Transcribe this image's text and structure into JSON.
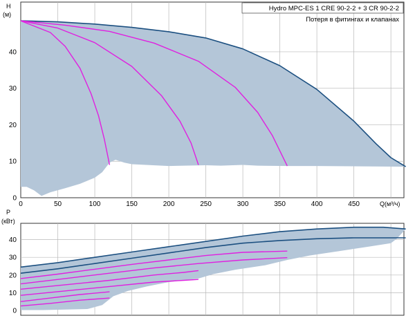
{
  "chart_data": [
    {
      "type": "line",
      "title": "Hydro MPC-ES 1 CRE 90-2-2 + 3 CR 90-2-2",
      "subtitle": "Потеря в фитингах и клапанах",
      "xlabel": "Q(м³/ч)",
      "ylabel_line1": "H",
      "ylabel_line2": "(м)",
      "xlim": [
        0,
        500
      ],
      "ylim": [
        0,
        50
      ],
      "xticks": [
        "0",
        "50",
        "100",
        "150",
        "200",
        "250",
        "300",
        "350",
        "400",
        "450"
      ],
      "yticks": [
        "0",
        "10",
        "20",
        "30",
        "40"
      ],
      "grid": true,
      "area": {
        "top": [
          [
            0,
            48.5
          ],
          [
            50,
            48.2
          ],
          [
            100,
            47.6
          ],
          [
            150,
            46.7
          ],
          [
            200,
            45.5
          ],
          [
            250,
            43.8
          ],
          [
            300,
            40.8
          ],
          [
            350,
            36.2
          ],
          [
            400,
            29.7
          ],
          [
            450,
            21.0
          ],
          [
            480,
            14.8
          ],
          [
            500,
            11.0
          ],
          [
            520,
            8.5
          ]
        ],
        "bottom": [
          [
            520,
            8.5
          ],
          [
            400,
            8.7
          ],
          [
            360,
            8.7
          ],
          [
            320,
            8.8
          ],
          [
            300,
            9.0
          ],
          [
            270,
            8.8
          ],
          [
            250,
            8.9
          ],
          [
            200,
            8.7
          ],
          [
            150,
            9.2
          ],
          [
            140,
            9.6
          ],
          [
            128,
            10.4
          ],
          [
            120,
            9.6
          ],
          [
            110,
            7.0
          ],
          [
            100,
            5.5
          ],
          [
            80,
            3.8
          ],
          [
            60,
            2.6
          ],
          [
            40,
            1.5
          ],
          [
            28,
            0.5
          ],
          [
            18,
            2.0
          ],
          [
            8,
            3.0
          ],
          [
            0,
            3.0
          ]
        ]
      },
      "series": [
        {
          "color": "#1b4f80",
          "points": [
            [
              0,
              48.5
            ],
            [
              50,
              48.2
            ],
            [
              100,
              47.6
            ],
            [
              150,
              46.7
            ],
            [
              200,
              45.5
            ],
            [
              250,
              43.8
            ],
            [
              300,
              40.8
            ],
            [
              350,
              36.2
            ],
            [
              400,
              29.7
            ],
            [
              450,
              21.0
            ],
            [
              480,
              14.8
            ],
            [
              500,
              11.0
            ],
            [
              520,
              8.5
            ]
          ]
        },
        {
          "color": "#e020e0",
          "points": [
            [
              0,
              48.5
            ],
            [
              40,
              45.3
            ],
            [
              60,
              41.5
            ],
            [
              80,
              35.5
            ],
            [
              95,
              28.5
            ],
            [
              105,
              22.5
            ],
            [
              113,
              16.0
            ],
            [
              120,
              9.0
            ]
          ]
        },
        {
          "color": "#e020e0",
          "points": [
            [
              0,
              48.5
            ],
            [
              50,
              46.5
            ],
            [
              100,
              42.5
            ],
            [
              150,
              36.0
            ],
            [
              190,
              28.0
            ],
            [
              215,
              21.0
            ],
            [
              230,
              15.0
            ],
            [
              240,
              9.0
            ]
          ]
        },
        {
          "color": "#e020e0",
          "points": [
            [
              0,
              48.5
            ],
            [
              60,
              47.3
            ],
            [
              120,
              45.6
            ],
            [
              180,
              42.4
            ],
            [
              240,
              37.4
            ],
            [
              290,
              30.2
            ],
            [
              320,
              23.4
            ],
            [
              340,
              17.0
            ],
            [
              360,
              8.7
            ]
          ]
        }
      ]
    },
    {
      "type": "line",
      "ylabel_line1": "P",
      "ylabel_line2": "(кВт)",
      "xlim": [
        0,
        500
      ],
      "ylim": [
        0,
        50
      ],
      "yticks": [
        "0",
        "10",
        "20",
        "30",
        "40"
      ],
      "grid": true,
      "area": {
        "top": [
          [
            0,
            24.5
          ],
          [
            50,
            27.0
          ],
          [
            100,
            30.0
          ],
          [
            150,
            33.0
          ],
          [
            200,
            36.0
          ],
          [
            250,
            39.0
          ],
          [
            300,
            42.0
          ],
          [
            350,
            44.5
          ],
          [
            400,
            46.0
          ],
          [
            450,
            47.0
          ],
          [
            490,
            47.0
          ],
          [
            520,
            46.0
          ]
        ],
        "bottom": [
          [
            520,
            46.0
          ],
          [
            508,
            40.5
          ],
          [
            500,
            38.0
          ],
          [
            470,
            36.0
          ],
          [
            430,
            33.5
          ],
          [
            390,
            31.0
          ],
          [
            360,
            28.5
          ],
          [
            330,
            25.5
          ],
          [
            290,
            23.0
          ],
          [
            260,
            20.5
          ],
          [
            240,
            18.0
          ],
          [
            200,
            16.0
          ],
          [
            170,
            13.5
          ],
          [
            145,
            11.0
          ],
          [
            125,
            8.0
          ],
          [
            110,
            3.0
          ],
          [
            90,
            0.8
          ],
          [
            60,
            0.5
          ],
          [
            30,
            0.2
          ],
          [
            0,
            0.2
          ]
        ]
      },
      "series": [
        {
          "color": "#1b4f80",
          "points": [
            [
              0,
              24.5
            ],
            [
              50,
              27.0
            ],
            [
              100,
              30.0
            ],
            [
              150,
              33.0
            ],
            [
              200,
              36.0
            ],
            [
              250,
              39.0
            ],
            [
              300,
              42.0
            ],
            [
              350,
              44.5
            ],
            [
              400,
              46.0
            ],
            [
              450,
              47.0
            ],
            [
              490,
              47.0
            ],
            [
              520,
              46.0
            ]
          ]
        },
        {
          "color": "#1b4f80",
          "points": [
            [
              0,
              21.0
            ],
            [
              50,
              23.5
            ],
            [
              100,
              26.5
            ],
            [
              150,
              29.5
            ],
            [
              200,
              32.5
            ],
            [
              250,
              35.5
            ],
            [
              300,
              38.0
            ],
            [
              350,
              39.5
            ],
            [
              400,
              40.5
            ],
            [
              450,
              41.0
            ],
            [
              520,
              41.0
            ]
          ]
        },
        {
          "color": "#e020e0",
          "points": [
            [
              0,
              18.0
            ],
            [
              50,
              20.5
            ],
            [
              100,
              23.3
            ],
            [
              150,
              26.0
            ],
            [
              200,
              28.5
            ],
            [
              250,
              31.0
            ],
            [
              300,
              32.8
            ],
            [
              360,
              33.5
            ]
          ]
        },
        {
          "color": "#e020e0",
          "points": [
            [
              0,
              15.0
            ],
            [
              60,
              18.0
            ],
            [
              120,
              21.0
            ],
            [
              180,
              24.0
            ],
            [
              240,
              26.5
            ],
            [
              300,
              28.5
            ],
            [
              360,
              29.8
            ]
          ]
        },
        {
          "color": "#e020e0",
          "points": [
            [
              0,
              12.0
            ],
            [
              60,
              14.5
            ],
            [
              120,
              17.0
            ],
            [
              180,
              20.0
            ],
            [
              220,
              21.5
            ],
            [
              240,
              22.5
            ]
          ]
        },
        {
          "color": "#e020e0",
          "points": [
            [
              0,
              8.5
            ],
            [
              60,
              11.0
            ],
            [
              120,
              13.5
            ],
            [
              180,
              16.0
            ],
            [
              220,
              17.0
            ],
            [
              240,
              17.5
            ]
          ]
        },
        {
          "color": "#e020e0",
          "points": [
            [
              0,
              5.0
            ],
            [
              40,
              7.0
            ],
            [
              80,
              9.0
            ],
            [
              120,
              10.5
            ]
          ]
        },
        {
          "color": "#e020e0",
          "points": [
            [
              0,
              2.5
            ],
            [
              40,
              4.0
            ],
            [
              80,
              5.8
            ],
            [
              120,
              7.0
            ]
          ]
        }
      ]
    }
  ],
  "colors": {
    "area_fill": "#b4c6d8",
    "grid": "#b8b8b8",
    "frame": "#333333"
  }
}
